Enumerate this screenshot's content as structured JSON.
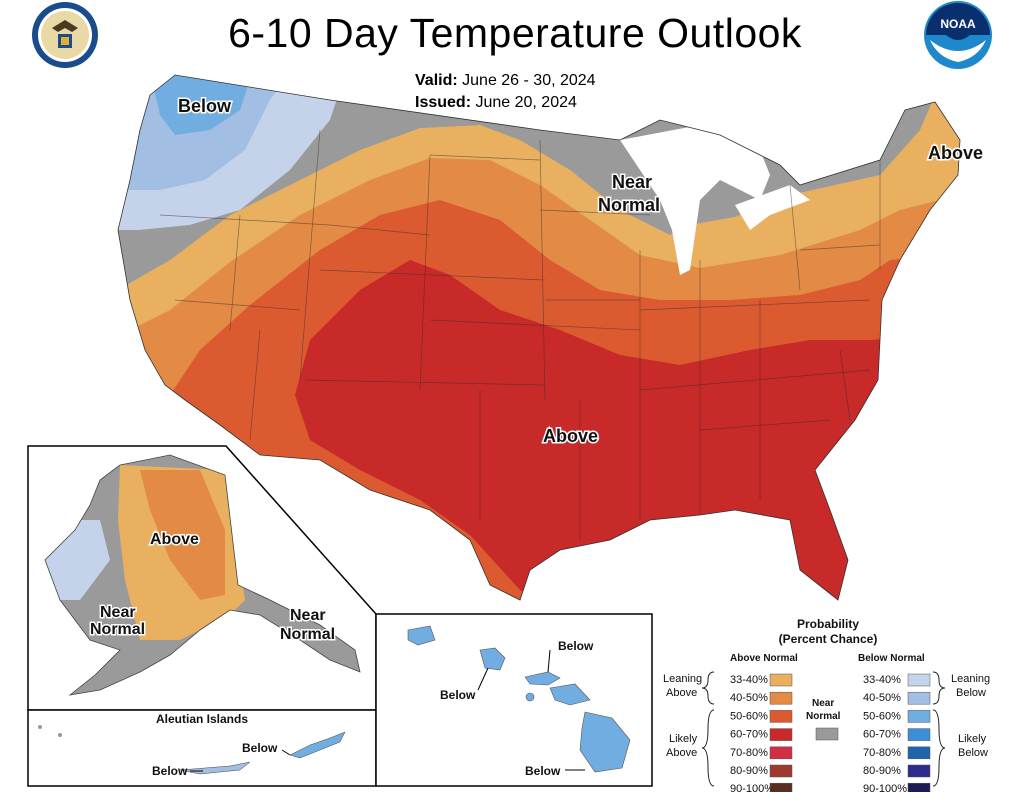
{
  "header": {
    "title": "6-10 Day Temperature Outlook",
    "valid_label": "Valid:",
    "valid_value": "June 26 - 30, 2024",
    "issued_label": "Issued:",
    "issued_value": "June 20, 2024"
  },
  "logos": {
    "left": "department-of-commerce-seal",
    "right": "noaa-logo",
    "noaa_text": "NOAA"
  },
  "map_labels": {
    "conus_below": "Below",
    "conus_near": "Near",
    "conus_normal": "Normal",
    "conus_above_ne": "Above",
    "conus_above_south": "Above",
    "ak_above": "Above",
    "ak_near_west": "Near",
    "ak_normal_west": "Normal",
    "ak_near_east": "Near",
    "ak_normal_east": "Normal",
    "aleutian_title": "Aleutian Islands",
    "aleutian_below_1": "Below",
    "aleutian_below_2": "Below",
    "hi_below_1": "Below",
    "hi_below_2": "Below",
    "hi_below_3": "Below"
  },
  "legend": {
    "title_1": "Probability",
    "title_2": "(Percent Chance)",
    "above_header": "Above Normal",
    "below_header": "Below Normal",
    "near_header_1": "Near",
    "near_header_2": "Normal",
    "leaning_above_1": "Leaning",
    "leaning_above_2": "Above",
    "likely_above_1": "Likely",
    "likely_above_2": "Above",
    "leaning_below_1": "Leaning",
    "leaning_below_2": "Below",
    "likely_below_1": "Likely",
    "likely_below_2": "Below",
    "above_bins": [
      {
        "label": "33-40%",
        "color": "#e9b060"
      },
      {
        "label": "40-50%",
        "color": "#e38a45"
      },
      {
        "label": "50-60%",
        "color": "#db5a30"
      },
      {
        "label": "60-70%",
        "color": "#c72a28"
      },
      {
        "label": "70-80%",
        "color": "#d13044"
      },
      {
        "label": "80-90%",
        "color": "#9c3a30"
      },
      {
        "label": "90-100%",
        "color": "#5a2f20"
      }
    ],
    "below_bins": [
      {
        "label": "33-40%",
        "color": "#c5d3ea"
      },
      {
        "label": "40-50%",
        "color": "#a2bee2"
      },
      {
        "label": "50-60%",
        "color": "#71ade0"
      },
      {
        "label": "60-70%",
        "color": "#3c8fd6"
      },
      {
        "label": "70-80%",
        "color": "#1f65ad"
      },
      {
        "label": "80-90%",
        "color": "#2c2c8c"
      },
      {
        "label": "90-100%",
        "color": "#1c1c52"
      }
    ],
    "near_normal_color": "#9a9a9a"
  }
}
